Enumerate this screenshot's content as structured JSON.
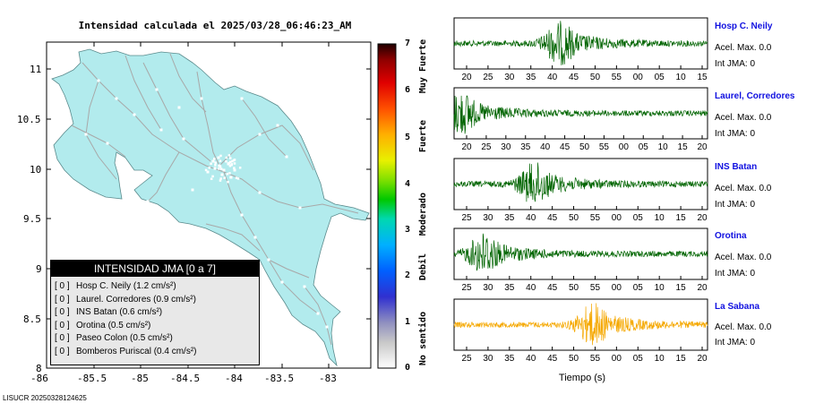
{
  "map": {
    "title": "Intensidad calculada el 2025/03/28_06:46:23_AM",
    "lon_ticks": [
      "-86",
      "-85.5",
      "-85",
      "-84.5",
      "-84",
      "-83.5",
      "-83"
    ],
    "lat_ticks": [
      "11",
      "10.5",
      "10",
      "9.5",
      "9",
      "8.5",
      "8"
    ],
    "land_color": "#b2ebed",
    "road_color": "#a8a8a8"
  },
  "legend": {
    "header": "INTENSIDAD JMA [0 a 7]",
    "items": [
      {
        "intensity": "[ 0 ]",
        "text": "Hosp C. Neily (1.2 cm/s²)"
      },
      {
        "intensity": "[ 0 ]",
        "text": "Laurel. Corredores (0.9 cm/s²)"
      },
      {
        "intensity": "[ 0 ]",
        "text": "INS Batan (0.6 cm/s²)"
      },
      {
        "intensity": "[ 0 ]",
        "text": "Orotina (0.5 cm/s²)"
      },
      {
        "intensity": "[ 0 ]",
        "text": "Paseo Colon (0.5 cm/s²)"
      },
      {
        "intensity": "[ 0 ]",
        "text": "Bomberos Puriscal (0.4 cm/s²)"
      }
    ]
  },
  "colorbar": {
    "ticks": [
      "7",
      "6",
      "5",
      "4",
      "3",
      "2",
      "1",
      "0"
    ],
    "words": [
      "Muy Fuerte",
      "Fuerte",
      "Moderado",
      "Debil",
      "No sentido"
    ]
  },
  "footer": "LISUCR 20250328124625",
  "waveforms": {
    "xlabel": "Tiempo (s)",
    "stations": [
      {
        "name": "Hosp C. Neily",
        "acc": "Acel. Max. 0.0",
        "jma": "Int JMA: 0",
        "color": "#006400",
        "ticks": [
          "20",
          "25",
          "30",
          "35",
          "40",
          "45",
          "50",
          "55",
          "00",
          "05",
          "10",
          "15"
        ],
        "peak_frac": 0.42
      },
      {
        "name": "Laurel, Corredores",
        "acc": "Acel. Max. 0.0",
        "jma": "Int JMA: 0",
        "color": "#006400",
        "ticks": [
          "20",
          "25",
          "30",
          "35",
          "40",
          "45",
          "50",
          "55",
          "00",
          "05",
          "10",
          "15",
          "20"
        ],
        "peak_frac": 0.03
      },
      {
        "name": "INS Batan",
        "acc": "Acel. Max. 0.0",
        "jma": "Int JMA: 0",
        "color": "#006400",
        "ticks": [
          "25",
          "30",
          "35",
          "40",
          "45",
          "50",
          "55",
          "00",
          "05",
          "10",
          "15",
          "20"
        ],
        "peak_frac": 0.32
      },
      {
        "name": "Orotina",
        "acc": "Acel. Max. 0.0",
        "jma": "Int JMA: 0",
        "color": "#006400",
        "ticks": [
          "25",
          "30",
          "35",
          "40",
          "45",
          "50",
          "55",
          "00",
          "05",
          "10",
          "15",
          "20"
        ],
        "peak_frac": 0.12
      },
      {
        "name": "La Sabana",
        "acc": "Acel. Max. 0.0",
        "jma": "Int JMA: 0",
        "color": "#f5a800",
        "ticks": [
          "25",
          "30",
          "35",
          "40",
          "45",
          "50",
          "55",
          "00",
          "05",
          "10",
          "15",
          "20"
        ],
        "peak_frac": 0.55
      }
    ]
  }
}
